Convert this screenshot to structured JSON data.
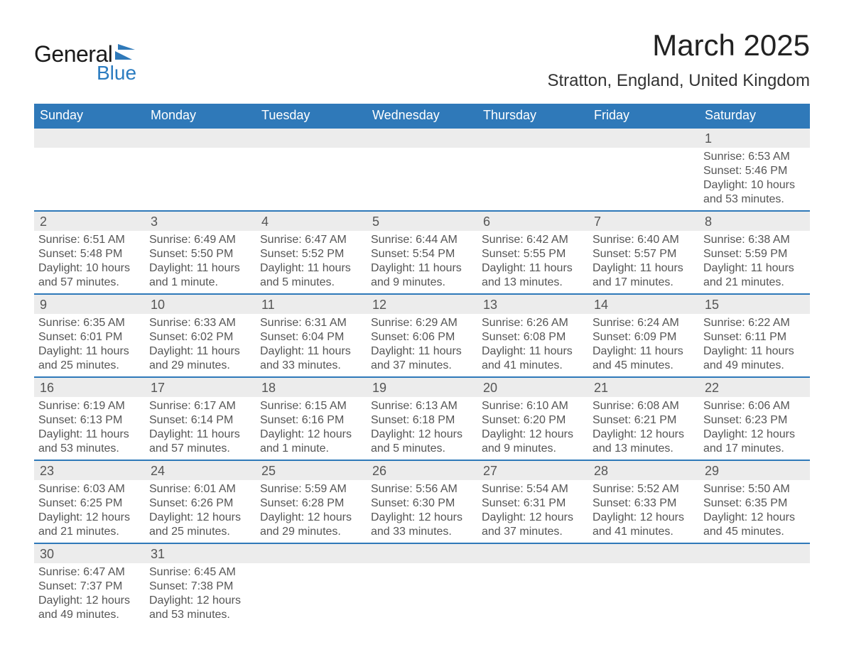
{
  "logo": {
    "text_general": "General",
    "text_blue": "Blue",
    "shape_color": "#2f79b9"
  },
  "title": "March 2025",
  "location": "Stratton, England, United Kingdom",
  "colors": {
    "header_bg": "#2f79b9",
    "header_text": "#ffffff",
    "daynum_bg": "#ececec",
    "rule": "#2f79b9",
    "body_text": "#555555",
    "page_bg": "#ffffff"
  },
  "day_headers": [
    "Sunday",
    "Monday",
    "Tuesday",
    "Wednesday",
    "Thursday",
    "Friday",
    "Saturday"
  ],
  "weeks": [
    {
      "days": [
        null,
        null,
        null,
        null,
        null,
        null,
        {
          "n": "1",
          "sunrise": "6:53 AM",
          "sunset": "5:46 PM",
          "daylight": "10 hours and 53 minutes."
        }
      ]
    },
    {
      "days": [
        {
          "n": "2",
          "sunrise": "6:51 AM",
          "sunset": "5:48 PM",
          "daylight": "10 hours and 57 minutes."
        },
        {
          "n": "3",
          "sunrise": "6:49 AM",
          "sunset": "5:50 PM",
          "daylight": "11 hours and 1 minute."
        },
        {
          "n": "4",
          "sunrise": "6:47 AM",
          "sunset": "5:52 PM",
          "daylight": "11 hours and 5 minutes."
        },
        {
          "n": "5",
          "sunrise": "6:44 AM",
          "sunset": "5:54 PM",
          "daylight": "11 hours and 9 minutes."
        },
        {
          "n": "6",
          "sunrise": "6:42 AM",
          "sunset": "5:55 PM",
          "daylight": "11 hours and 13 minutes."
        },
        {
          "n": "7",
          "sunrise": "6:40 AM",
          "sunset": "5:57 PM",
          "daylight": "11 hours and 17 minutes."
        },
        {
          "n": "8",
          "sunrise": "6:38 AM",
          "sunset": "5:59 PM",
          "daylight": "11 hours and 21 minutes."
        }
      ]
    },
    {
      "days": [
        {
          "n": "9",
          "sunrise": "6:35 AM",
          "sunset": "6:01 PM",
          "daylight": "11 hours and 25 minutes."
        },
        {
          "n": "10",
          "sunrise": "6:33 AM",
          "sunset": "6:02 PM",
          "daylight": "11 hours and 29 minutes."
        },
        {
          "n": "11",
          "sunrise": "6:31 AM",
          "sunset": "6:04 PM",
          "daylight": "11 hours and 33 minutes."
        },
        {
          "n": "12",
          "sunrise": "6:29 AM",
          "sunset": "6:06 PM",
          "daylight": "11 hours and 37 minutes."
        },
        {
          "n": "13",
          "sunrise": "6:26 AM",
          "sunset": "6:08 PM",
          "daylight": "11 hours and 41 minutes."
        },
        {
          "n": "14",
          "sunrise": "6:24 AM",
          "sunset": "6:09 PM",
          "daylight": "11 hours and 45 minutes."
        },
        {
          "n": "15",
          "sunrise": "6:22 AM",
          "sunset": "6:11 PM",
          "daylight": "11 hours and 49 minutes."
        }
      ]
    },
    {
      "days": [
        {
          "n": "16",
          "sunrise": "6:19 AM",
          "sunset": "6:13 PM",
          "daylight": "11 hours and 53 minutes."
        },
        {
          "n": "17",
          "sunrise": "6:17 AM",
          "sunset": "6:14 PM",
          "daylight": "11 hours and 57 minutes."
        },
        {
          "n": "18",
          "sunrise": "6:15 AM",
          "sunset": "6:16 PM",
          "daylight": "12 hours and 1 minute."
        },
        {
          "n": "19",
          "sunrise": "6:13 AM",
          "sunset": "6:18 PM",
          "daylight": "12 hours and 5 minutes."
        },
        {
          "n": "20",
          "sunrise": "6:10 AM",
          "sunset": "6:20 PM",
          "daylight": "12 hours and 9 minutes."
        },
        {
          "n": "21",
          "sunrise": "6:08 AM",
          "sunset": "6:21 PM",
          "daylight": "12 hours and 13 minutes."
        },
        {
          "n": "22",
          "sunrise": "6:06 AM",
          "sunset": "6:23 PM",
          "daylight": "12 hours and 17 minutes."
        }
      ]
    },
    {
      "days": [
        {
          "n": "23",
          "sunrise": "6:03 AM",
          "sunset": "6:25 PM",
          "daylight": "12 hours and 21 minutes."
        },
        {
          "n": "24",
          "sunrise": "6:01 AM",
          "sunset": "6:26 PM",
          "daylight": "12 hours and 25 minutes."
        },
        {
          "n": "25",
          "sunrise": "5:59 AM",
          "sunset": "6:28 PM",
          "daylight": "12 hours and 29 minutes."
        },
        {
          "n": "26",
          "sunrise": "5:56 AM",
          "sunset": "6:30 PM",
          "daylight": "12 hours and 33 minutes."
        },
        {
          "n": "27",
          "sunrise": "5:54 AM",
          "sunset": "6:31 PM",
          "daylight": "12 hours and 37 minutes."
        },
        {
          "n": "28",
          "sunrise": "5:52 AM",
          "sunset": "6:33 PM",
          "daylight": "12 hours and 41 minutes."
        },
        {
          "n": "29",
          "sunrise": "5:50 AM",
          "sunset": "6:35 PM",
          "daylight": "12 hours and 45 minutes."
        }
      ]
    },
    {
      "days": [
        {
          "n": "30",
          "sunrise": "6:47 AM",
          "sunset": "7:37 PM",
          "daylight": "12 hours and 49 minutes."
        },
        {
          "n": "31",
          "sunrise": "6:45 AM",
          "sunset": "7:38 PM",
          "daylight": "12 hours and 53 minutes."
        },
        null,
        null,
        null,
        null,
        null
      ]
    }
  ],
  "labels": {
    "sunrise": "Sunrise: ",
    "sunset": "Sunset: ",
    "daylight": "Daylight: "
  }
}
